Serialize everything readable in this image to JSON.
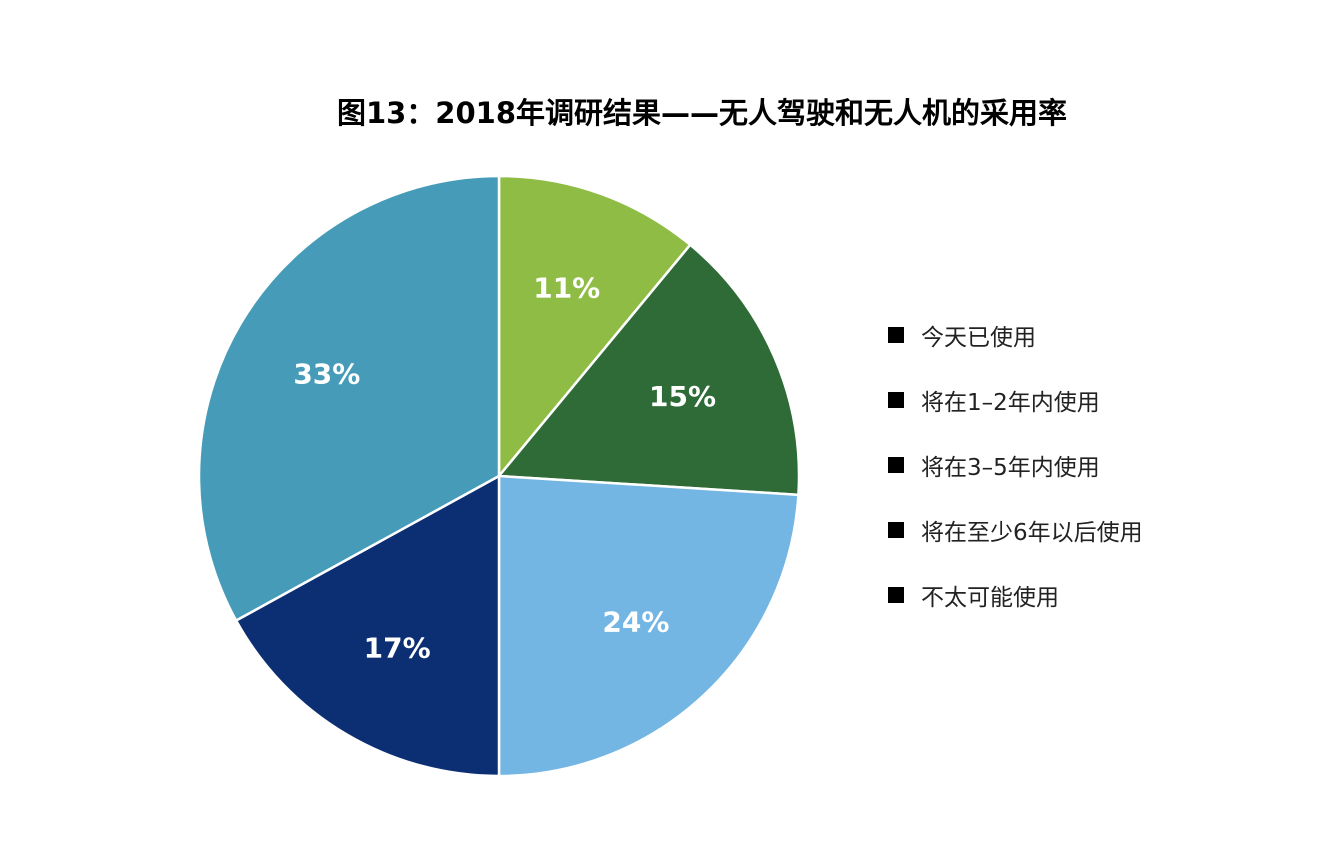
{
  "chart_data": {
    "type": "pie",
    "title": "图13：2018年调研结果——无人驾驶和无人机的采用率",
    "categories": [
      "今天已使用",
      "将在1–2年内使用",
      "将在3–5年内使用",
      "将在至少6年以后使用",
      "不太可能使用"
    ],
    "values": [
      11,
      15,
      24,
      17,
      33
    ],
    "value_labels": [
      "11%",
      "15%",
      "24%",
      "17%",
      "33%"
    ],
    "colors": [
      "#8fbc45",
      "#2e6b37",
      "#73b5e3",
      "#0c2e73",
      "#469cb8"
    ],
    "legend_position": "right",
    "legend_swatch_color": "#000000"
  }
}
